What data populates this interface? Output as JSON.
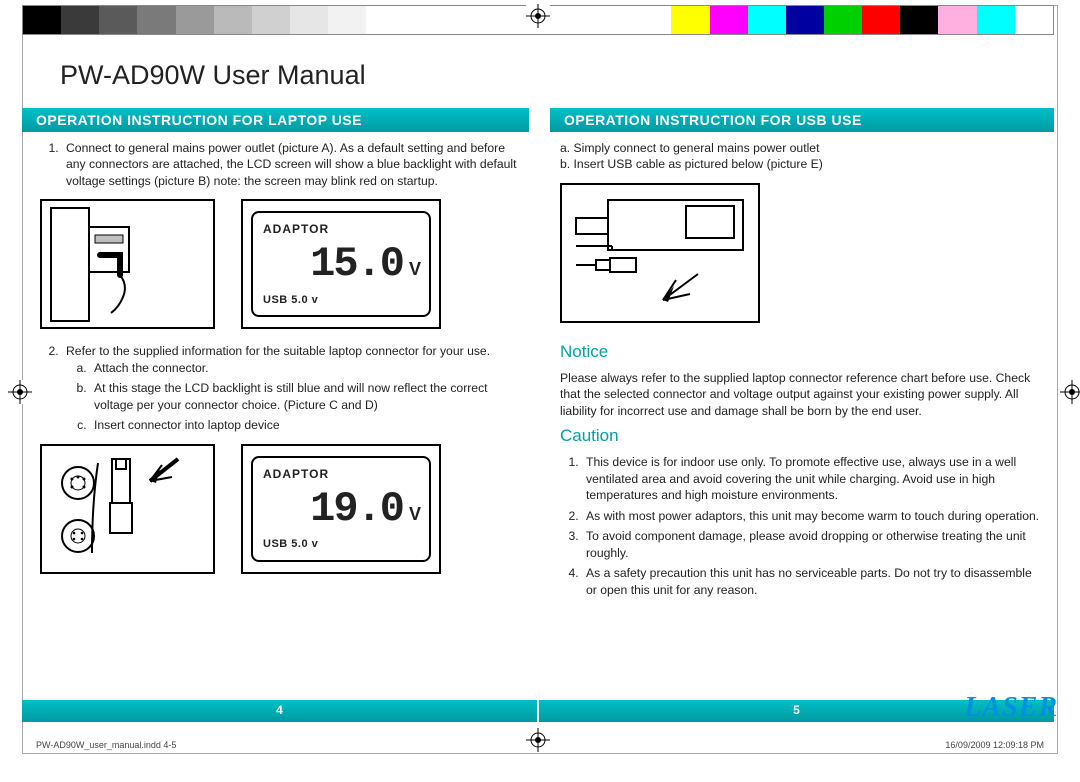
{
  "doc_title": "PW-AD90W User Manual",
  "colorbar_colors": [
    "#000000",
    "#3a3a3a",
    "#5a5a5a",
    "#7a7a7a",
    "#9a9a9a",
    "#bababa",
    "#d0d0d0",
    "#e6e6e6",
    "#f2f2f2",
    "#ffffff",
    "#ffffff",
    "#ffffff",
    "#ffffff",
    "#ffffff",
    "#ffffff",
    "#ffffff",
    "#ffffff",
    "#ffff00",
    "#ff00ff",
    "#00ffff",
    "#0000a0",
    "#00d000",
    "#ff0000",
    "#000000",
    "#ffb0e0",
    "#00ffff",
    "#ffffff"
  ],
  "sec_left_title": "OPERATION INSTRUCTION FOR LAPTOP USE",
  "sec_right_title": "OPERATION INSTRUCTION FOR USB USE",
  "laptop_steps": {
    "s1": "Connect to general mains power outlet (picture A). As a default setting and before any connectors are attached, the LCD screen will show a blue backlight with default voltage settings (picture B) note: the screen may blink red on startup.",
    "s2": "Refer to the supplied information for the suitable laptop connector for your use.",
    "s2a": "Attach the connector.",
    "s2b": "At this stage the LCD backlight is still blue and will now reflect the correct voltage per your connector choice. (Picture C and D)",
    "s2c": "Insert connector into laptop device"
  },
  "usb_steps": {
    "a": "a. Simply connect to general mains power outlet",
    "b": "b. Insert USB cable as pictured below (picture E)"
  },
  "notice_h": "Notice",
  "notice_body": "Please always refer to the supplied laptop connector reference chart before use. Check that the selected connector and voltage output against your existing power supply. All liability for incorrect use and damage shall be born by the end user.",
  "caution_h": "Caution",
  "cautions": {
    "c1": "This device is for indoor use only. To promote effective use, always use in a well ventilated area and avoid covering the unit while charging. Avoid use in high temperatures and high moisture environments.",
    "c2": "As with most power adaptors, this unit may become warm to touch during operation.",
    "c3": "To avoid component damage, please avoid dropping or otherwise treating the unit roughly.",
    "c4": "As a safety precaution this unit has no serviceable parts. Do not try to disassemble or open this unit for any reason."
  },
  "lcd_b": {
    "label": "ADAPTOR",
    "volts": "15.0",
    "unit": "V",
    "usb": "USB 5.0 v"
  },
  "lcd_d": {
    "label": "ADAPTOR",
    "volts": "19.0",
    "unit": "V",
    "usb": "USB 5.0 v"
  },
  "page_left": "4",
  "page_right": "5",
  "logo_text": "LASER",
  "meta_file": "PW-AD90W_user_manual.indd   4-5",
  "meta_date": "16/09/2009   12:09:18 PM",
  "accent_color": "#00a8b0"
}
